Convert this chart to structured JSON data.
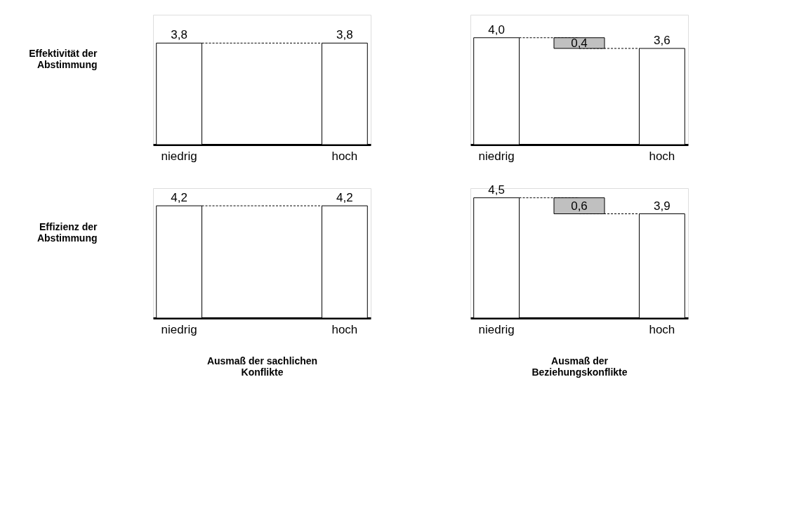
{
  "chart_data": [
    {
      "type": "bar",
      "ylabel": "Effektivität der Abstimmung",
      "categories": [
        "niedrig",
        "hoch"
      ],
      "values": [
        3.8,
        3.8
      ],
      "value_labels": [
        "3,8",
        "3,8"
      ],
      "color": "#ffffff"
    },
    {
      "type": "bar",
      "categories": [
        "niedrig",
        "hoch"
      ],
      "values": [
        4.0,
        3.6
      ],
      "value_labels": [
        "4,0",
        "3,6"
      ],
      "color": "#ffffff",
      "annotations": [
        "0,4"
      ]
    },
    {
      "type": "bar",
      "ylabel": "Effizienz der Abstimmung",
      "xlabel": "Ausmaß der sachlichen Konflikte",
      "categories": [
        "niedrig",
        "hoch"
      ],
      "values": [
        4.2,
        4.2
      ],
      "value_labels": [
        "4,2",
        "4,2"
      ],
      "color": "#ffffff"
    },
    {
      "type": "bar",
      "xlabel": "Ausmaß der Beziehungskonflikte",
      "categories": [
        "niedrig",
        "hoch"
      ],
      "values": [
        4.5,
        3.9
      ],
      "value_labels": [
        "4,5",
        "3,9"
      ],
      "color": "#ffffff",
      "annotations": [
        "0,6"
      ]
    }
  ]
}
